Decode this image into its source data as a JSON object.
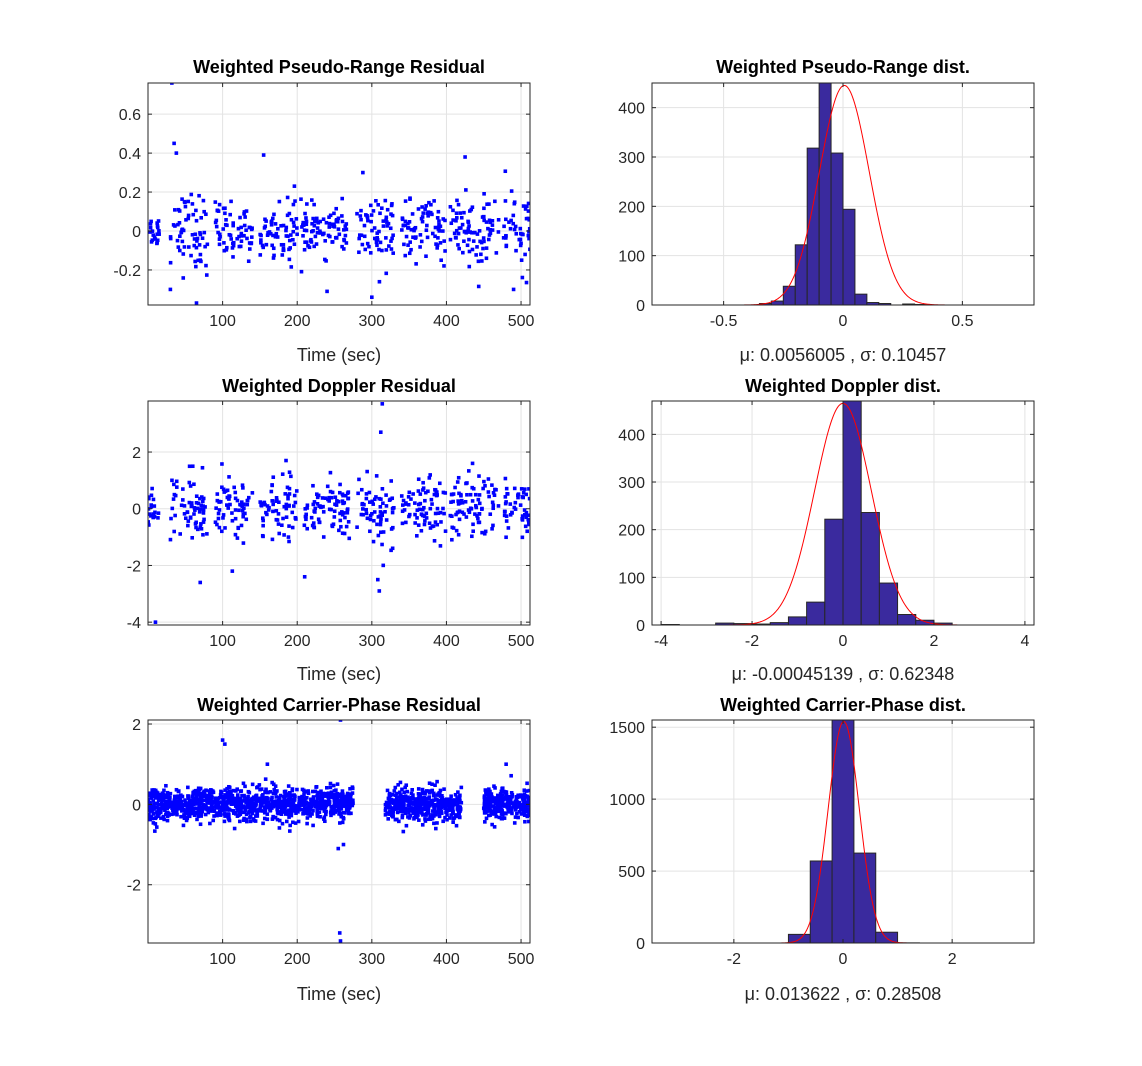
{
  "chart_data": [
    {
      "id": "pr_residual",
      "type": "scatter",
      "title": "Weighted Pseudo-Range Residual",
      "xlabel": "Time (sec)",
      "xlim": [
        0,
        512
      ],
      "ylim": [
        -0.38,
        0.76
      ],
      "xticks": [
        100,
        200,
        300,
        400,
        500
      ],
      "yticks": [
        -0.2,
        0,
        0.2,
        0.4,
        0.6
      ],
      "xtick_labels": [
        "100",
        "200",
        "300",
        "400",
        "500"
      ],
      "ytick_labels": [
        "-0.2",
        "0",
        "0.2",
        "0.4",
        "0.6"
      ],
      "grid": true,
      "color": "#0000ff",
      "clusters": [
        {
          "x": [
            0,
            15
          ],
          "sd": 0.04
        },
        {
          "x": [
            30,
            80
          ],
          "sd": 0.1
        },
        {
          "x": [
            90,
            140
          ],
          "sd": 0.07
        },
        {
          "x": [
            150,
            200
          ],
          "sd": 0.08
        },
        {
          "x": [
            205,
            270
          ],
          "sd": 0.06
        },
        {
          "x": [
            280,
            330
          ],
          "sd": 0.09
        },
        {
          "x": [
            340,
            400
          ],
          "sd": 0.07
        },
        {
          "x": [
            405,
            470
          ],
          "sd": 0.1
        },
        {
          "x": [
            475,
            512
          ],
          "sd": 0.1
        }
      ],
      "notable_points": [
        {
          "x": 32,
          "y": 0.76
        },
        {
          "x": 35,
          "y": 0.45
        },
        {
          "x": 38,
          "y": 0.4
        },
        {
          "x": 30,
          "y": -0.3
        },
        {
          "x": 65,
          "y": -0.37
        },
        {
          "x": 155,
          "y": 0.39
        },
        {
          "x": 288,
          "y": 0.3
        },
        {
          "x": 300,
          "y": -0.34
        },
        {
          "x": 425,
          "y": 0.38
        },
        {
          "x": 240,
          "y": -0.31
        },
        {
          "x": 490,
          "y": -0.3
        }
      ]
    },
    {
      "id": "pr_dist",
      "type": "bar",
      "title": "Weighted Pseudo-Range dist.",
      "xlabel": "μ: 0.0056005 , σ: 0.10457",
      "xlim": [
        -0.8,
        0.8
      ],
      "ylim": [
        0,
        450
      ],
      "xticks": [
        -0.5,
        0,
        0.5
      ],
      "yticks": [
        0,
        100,
        200,
        300,
        400
      ],
      "xtick_labels": [
        "-0.5",
        "0",
        "0.5"
      ],
      "ytick_labels": [
        "0",
        "100",
        "200",
        "300",
        "400"
      ],
      "grid": true,
      "bin_edges": [
        -0.35,
        -0.3,
        -0.25,
        -0.2,
        -0.15,
        -0.1,
        -0.05,
        0,
        0.05,
        0.1,
        0.15,
        0.2,
        0.25,
        0.3,
        0.35,
        0.4
      ],
      "values": [
        3,
        8,
        38,
        122,
        318,
        450,
        308,
        194,
        22,
        5,
        3,
        0,
        2,
        1,
        0
      ],
      "bar_color": "#3a2a9e",
      "fit": {
        "mu": 0.0056005,
        "sigma": 0.10457,
        "peak": 445,
        "color": "#ff0000"
      }
    },
    {
      "id": "dop_residual",
      "type": "scatter",
      "title": "Weighted Doppler Residual",
      "xlabel": "Time (sec)",
      "xlim": [
        0,
        512
      ],
      "ylim": [
        -4.1,
        3.8
      ],
      "xticks": [
        100,
        200,
        300,
        400,
        500
      ],
      "yticks": [
        -4,
        -2,
        0,
        2
      ],
      "xtick_labels": [
        "100",
        "200",
        "300",
        "400",
        "500"
      ],
      "ytick_labels": [
        "-4",
        "-2",
        "0",
        "2"
      ],
      "grid": true,
      "color": "#0000ff",
      "clusters": [
        {
          "x": [
            0,
            15
          ],
          "sd": 0.3
        },
        {
          "x": [
            30,
            80
          ],
          "sd": 0.6
        },
        {
          "x": [
            90,
            140
          ],
          "sd": 0.5
        },
        {
          "x": [
            150,
            200
          ],
          "sd": 0.55
        },
        {
          "x": [
            205,
            270
          ],
          "sd": 0.5
        },
        {
          "x": [
            280,
            330
          ],
          "sd": 0.7
        },
        {
          "x": [
            340,
            400
          ],
          "sd": 0.5
        },
        {
          "x": [
            405,
            470
          ],
          "sd": 0.6
        },
        {
          "x": [
            475,
            512
          ],
          "sd": 0.5
        }
      ],
      "notable_points": [
        {
          "x": 10,
          "y": -4.0
        },
        {
          "x": 70,
          "y": -2.6
        },
        {
          "x": 113,
          "y": -2.2
        },
        {
          "x": 210,
          "y": -2.4
        },
        {
          "x": 308,
          "y": -2.5
        },
        {
          "x": 310,
          "y": -2.9
        },
        {
          "x": 314,
          "y": 3.7
        },
        {
          "x": 312,
          "y": 2.7
        },
        {
          "x": 435,
          "y": 1.6
        },
        {
          "x": 185,
          "y": 1.7
        },
        {
          "x": 60,
          "y": 1.5
        }
      ]
    },
    {
      "id": "dop_dist",
      "type": "bar",
      "title": "Weighted Doppler dist.",
      "xlabel": "μ: -0.00045139 , σ: 0.62348",
      "xlim": [
        -4.2,
        4.2
      ],
      "ylim": [
        0,
        470
      ],
      "xticks": [
        -4,
        -2,
        0,
        2,
        4
      ],
      "yticks": [
        0,
        100,
        200,
        300,
        400
      ],
      "xtick_labels": [
        "-4",
        "-2",
        "0",
        "2",
        "4"
      ],
      "ytick_labels": [
        "0",
        "100",
        "200",
        "300",
        "400"
      ],
      "grid": true,
      "bin_edges": [
        -4.0,
        -3.6,
        -3.2,
        -2.8,
        -2.4,
        -2.0,
        -1.6,
        -1.2,
        -0.8,
        -0.4,
        0.0,
        0.4,
        0.8,
        1.2,
        1.6,
        2.0,
        2.4
      ],
      "values": [
        1,
        0,
        0,
        4,
        3,
        2,
        5,
        17,
        48,
        222,
        470,
        236,
        88,
        22,
        10,
        4
      ],
      "bar_color": "#3a2a9e",
      "fit": {
        "mu": -0.00045139,
        "sigma": 0.62348,
        "peak": 465,
        "color": "#ff0000"
      }
    },
    {
      "id": "cp_residual",
      "type": "scatter",
      "title": "Weighted Carrier-Phase Residual",
      "xlabel": "Time (sec)",
      "xlim": [
        0,
        512
      ],
      "ylim": [
        -3.45,
        2.1
      ],
      "xticks": [
        100,
        200,
        300,
        400,
        500
      ],
      "yticks": [
        -2,
        0,
        2
      ],
      "xtick_labels": [
        "100",
        "200",
        "300",
        "400",
        "500"
      ],
      "ytick_labels": [
        "-2",
        "0",
        "2"
      ],
      "grid": true,
      "color": "#0000ff",
      "clusters": [
        {
          "x": [
            0,
            275
          ],
          "sd": 0.2,
          "dense": true
        },
        {
          "x": [
            318,
            420
          ],
          "sd": 0.2,
          "dense": true
        },
        {
          "x": [
            450,
            512
          ],
          "sd": 0.2,
          "dense": true
        }
      ],
      "notable_points": [
        {
          "x": 258,
          "y": 2.1
        },
        {
          "x": 258,
          "y": -3.4
        },
        {
          "x": 257,
          "y": -3.2
        },
        {
          "x": 100,
          "y": 1.6
        },
        {
          "x": 103,
          "y": 1.5
        },
        {
          "x": 262,
          "y": -1.0
        },
        {
          "x": 255,
          "y": -1.1
        },
        {
          "x": 480,
          "y": 1.0
        },
        {
          "x": 160,
          "y": 1.0
        }
      ]
    },
    {
      "id": "cp_dist",
      "type": "bar",
      "title": "Weighted Carrier-Phase dist.",
      "xlabel": "μ: 0.013622 , σ: 0.28508",
      "xlim": [
        -3.5,
        3.5
      ],
      "ylim": [
        0,
        1550
      ],
      "xticks": [
        -2,
        0,
        2
      ],
      "yticks": [
        0,
        500,
        1000,
        1500
      ],
      "xtick_labels": [
        "-2",
        "0",
        "2"
      ],
      "ytick_labels": [
        "0",
        "500",
        "1000",
        "1500"
      ],
      "grid": true,
      "bin_edges": [
        -3.4,
        -3.0,
        -2.6,
        -2.2,
        -1.8,
        -1.4,
        -1.0,
        -0.6,
        -0.2,
        0.2,
        0.6,
        1.0,
        1.4,
        1.8
      ],
      "values": [
        0,
        0,
        0,
        0,
        0,
        0,
        60,
        570,
        1550,
        625,
        75,
        1,
        0
      ],
      "bar_color": "#3a2a9e",
      "fit": {
        "mu": 0.013622,
        "sigma": 0.28508,
        "peak": 1540,
        "color": "#ff0000"
      }
    }
  ]
}
